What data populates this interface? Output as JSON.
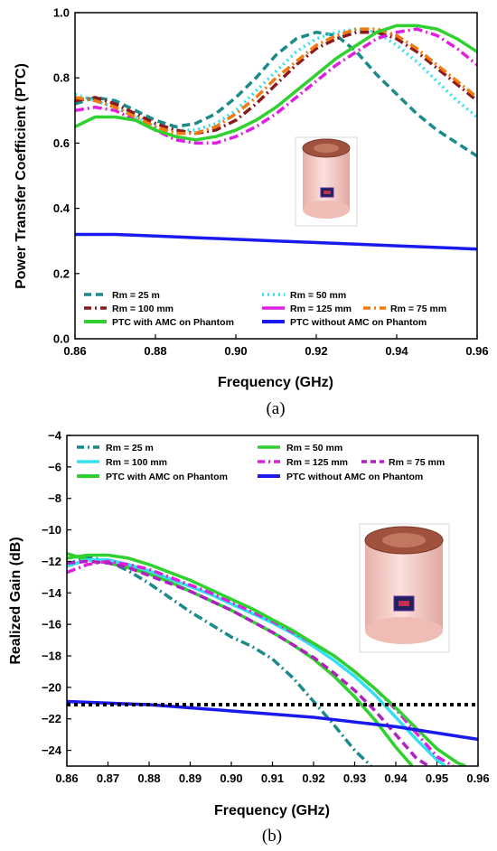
{
  "colors": {
    "teal": "#1a8a8a",
    "cyan": "#33e0f0",
    "darkred": "#8b1a1a",
    "magenta": "#e020e0",
    "orange": "#f07a10",
    "green": "#2ed12e",
    "blue": "#1a1aef",
    "purple": "#b020c0",
    "black": "#000000",
    "cylinder": "#f6c8c4",
    "cylinder_top": "#8b4a3a"
  },
  "chart_data": [
    {
      "type": "line",
      "panel_label": "(a)",
      "xlabel": "Frequency (GHz)",
      "ylabel": "Power Transfer Coefficient (PTC)",
      "xlim": [
        0.86,
        0.96
      ],
      "ylim": [
        0.0,
        1.0
      ],
      "xticks": [
        "0.86",
        "0.88",
        "0.90",
        "0.92",
        "0.94",
        "0.96"
      ],
      "yticks": [
        "0.0",
        "0.2",
        "0.4",
        "0.6",
        "0.8",
        "1.0"
      ],
      "grid": false,
      "legend_position": "bottom",
      "legend_columns": 2,
      "legend_rows": [
        [
          "Rm = 25 m",
          "Rm = 50 mm"
        ],
        [
          "Rm = 100 mm",
          "Rm = 125 mm"
        ],
        [
          "PTC with AMC on Phantom",
          "PTC without AMC on Phantom"
        ]
      ],
      "legend_extra": "Rm = 75 mm",
      "series": [
        {
          "name": "Rm = 25 m",
          "color": "teal",
          "dash": "dash",
          "x": [
            0.86,
            0.865,
            0.87,
            0.875,
            0.88,
            0.885,
            0.89,
            0.895,
            0.9,
            0.905,
            0.91,
            0.915,
            0.92,
            0.925,
            0.93,
            0.935,
            0.94,
            0.945,
            0.95,
            0.955,
            0.96
          ],
          "y": [
            0.72,
            0.74,
            0.73,
            0.7,
            0.67,
            0.65,
            0.66,
            0.69,
            0.74,
            0.8,
            0.87,
            0.92,
            0.94,
            0.93,
            0.88,
            0.81,
            0.75,
            0.69,
            0.64,
            0.6,
            0.56
          ]
        },
        {
          "name": "Rm = 50 mm",
          "color": "cyan",
          "dash": "dot",
          "x": [
            0.86,
            0.865,
            0.87,
            0.875,
            0.88,
            0.885,
            0.89,
            0.895,
            0.9,
            0.905,
            0.91,
            0.915,
            0.92,
            0.925,
            0.93,
            0.935,
            0.94,
            0.945,
            0.95,
            0.955,
            0.96
          ],
          "y": [
            0.75,
            0.73,
            0.71,
            0.68,
            0.65,
            0.64,
            0.64,
            0.66,
            0.7,
            0.76,
            0.82,
            0.88,
            0.92,
            0.94,
            0.95,
            0.94,
            0.9,
            0.85,
            0.79,
            0.73,
            0.68
          ]
        },
        {
          "name": "Rm = 100 mm",
          "color": "darkred",
          "dash": "dashdot",
          "x": [
            0.86,
            0.865,
            0.87,
            0.875,
            0.88,
            0.885,
            0.89,
            0.895,
            0.9,
            0.905,
            0.91,
            0.915,
            0.92,
            0.925,
            0.93,
            0.935,
            0.94,
            0.945,
            0.95,
            0.955,
            0.96
          ],
          "y": [
            0.73,
            0.74,
            0.72,
            0.69,
            0.66,
            0.64,
            0.63,
            0.64,
            0.67,
            0.72,
            0.78,
            0.84,
            0.89,
            0.92,
            0.94,
            0.94,
            0.92,
            0.88,
            0.83,
            0.78,
            0.73
          ]
        },
        {
          "name": "Rm = 125 mm",
          "color": "magenta",
          "dash": "dashdot",
          "x": [
            0.86,
            0.865,
            0.87,
            0.875,
            0.88,
            0.885,
            0.89,
            0.895,
            0.9,
            0.905,
            0.91,
            0.915,
            0.92,
            0.925,
            0.93,
            0.935,
            0.94,
            0.945,
            0.95,
            0.955,
            0.96
          ],
          "y": [
            0.7,
            0.71,
            0.7,
            0.67,
            0.64,
            0.61,
            0.6,
            0.6,
            0.62,
            0.65,
            0.69,
            0.74,
            0.79,
            0.84,
            0.88,
            0.92,
            0.94,
            0.95,
            0.93,
            0.89,
            0.84
          ]
        },
        {
          "name": "Rm = 75 mm",
          "color": "orange",
          "dash": "dashdot",
          "x": [
            0.86,
            0.865,
            0.87,
            0.875,
            0.88,
            0.885,
            0.89,
            0.895,
            0.9,
            0.905,
            0.91,
            0.915,
            0.92,
            0.925,
            0.93,
            0.935,
            0.94,
            0.945,
            0.95,
            0.955,
            0.96
          ],
          "y": [
            0.74,
            0.73,
            0.71,
            0.68,
            0.65,
            0.63,
            0.63,
            0.65,
            0.69,
            0.74,
            0.8,
            0.85,
            0.9,
            0.93,
            0.95,
            0.95,
            0.93,
            0.89,
            0.84,
            0.79,
            0.74
          ]
        },
        {
          "name": "PTC with AMC on Phantom",
          "color": "green",
          "dash": "solid",
          "x": [
            0.86,
            0.865,
            0.87,
            0.875,
            0.88,
            0.885,
            0.89,
            0.895,
            0.9,
            0.905,
            0.91,
            0.915,
            0.92,
            0.925,
            0.93,
            0.935,
            0.94,
            0.945,
            0.95,
            0.955,
            0.96
          ],
          "y": [
            0.65,
            0.68,
            0.68,
            0.67,
            0.64,
            0.62,
            0.61,
            0.62,
            0.64,
            0.67,
            0.71,
            0.76,
            0.81,
            0.86,
            0.9,
            0.94,
            0.96,
            0.96,
            0.95,
            0.92,
            0.88
          ]
        },
        {
          "name": "PTC without AMC on Phantom",
          "color": "blue",
          "dash": "solid",
          "x": [
            0.86,
            0.87,
            0.88,
            0.89,
            0.9,
            0.91,
            0.92,
            0.93,
            0.94,
            0.95,
            0.96
          ],
          "y": [
            0.32,
            0.32,
            0.315,
            0.31,
            0.305,
            0.3,
            0.295,
            0.29,
            0.285,
            0.28,
            0.275
          ]
        }
      ]
    },
    {
      "type": "line",
      "panel_label": "(b)",
      "xlabel": "Frequency (GHz)",
      "ylabel": "Realized Gain (dB)",
      "xlim": [
        0.86,
        0.96
      ],
      "ylim": [
        -25,
        -4
      ],
      "xticks": [
        "0.86",
        "0.87",
        "0.88",
        "0.89",
        "0.90",
        "0.91",
        "0.92",
        "0.93",
        "0.94",
        "0.95",
        "0.96"
      ],
      "yticks": [
        "-4",
        "-6",
        "-8",
        "-10",
        "-12",
        "-14",
        "-16",
        "-18",
        "-20",
        "-22",
        "-24"
      ],
      "grid": false,
      "legend_position": "top",
      "legend_columns": 2,
      "legend_rows": [
        [
          "Rm = 25 m",
          "Rm = 50 mm"
        ],
        [
          "Rm = 100 mm",
          "Rm = 125 mm"
        ],
        [
          "PTC with AMC on Phantom",
          "PTC without AMC on Phantom"
        ]
      ],
      "legend_extra": "Rm = 75 mm",
      "series": [
        {
          "name": "Rm = 25 m",
          "color": "teal",
          "dash": "dashdot",
          "x": [
            0.86,
            0.865,
            0.87,
            0.875,
            0.88,
            0.885,
            0.89,
            0.895,
            0.9,
            0.905,
            0.91,
            0.915,
            0.92,
            0.925,
            0.93,
            0.934
          ],
          "y": [
            -12.2,
            -11.7,
            -12.0,
            -12.6,
            -13.4,
            -14.3,
            -15.2,
            -16.0,
            -16.8,
            -17.4,
            -18.2,
            -19.4,
            -20.9,
            -22.4,
            -24.0,
            -25.0
          ]
        },
        {
          "name": "Rm = 50 mm",
          "color": "green",
          "dash": "solid",
          "x": [
            0.86,
            0.865,
            0.87,
            0.875,
            0.88,
            0.885,
            0.89,
            0.895,
            0.9,
            0.905,
            0.91,
            0.915,
            0.92,
            0.925,
            0.93,
            0.935,
            0.94,
            0.944
          ],
          "y": [
            -11.5,
            -11.9,
            -12.1,
            -12.4,
            -12.8,
            -13.3,
            -13.9,
            -14.5,
            -15.1,
            -15.8,
            -16.5,
            -17.3,
            -18.2,
            -19.3,
            -20.6,
            -22.1,
            -23.8,
            -25.0
          ]
        },
        {
          "name": "Rm = 100 mm",
          "color": "cyan",
          "dash": "solid",
          "x": [
            0.86,
            0.865,
            0.87,
            0.875,
            0.88,
            0.885,
            0.89,
            0.895,
            0.9,
            0.905,
            0.91,
            0.915,
            0.92,
            0.925,
            0.93,
            0.935,
            0.94,
            0.945,
            0.95,
            0.952
          ],
          "y": [
            -12.3,
            -11.9,
            -11.9,
            -12.2,
            -12.6,
            -13.1,
            -13.6,
            -14.1,
            -14.7,
            -15.3,
            -15.9,
            -16.6,
            -17.4,
            -18.3,
            -19.3,
            -20.5,
            -21.9,
            -23.3,
            -24.6,
            -25.0
          ]
        },
        {
          "name": "Rm = 125 mm",
          "color": "magenta",
          "dash": "dashdot",
          "x": [
            0.86,
            0.865,
            0.87,
            0.875,
            0.88,
            0.885,
            0.89,
            0.895,
            0.9,
            0.905,
            0.91,
            0.915,
            0.92,
            0.925,
            0.93,
            0.935,
            0.94,
            0.945,
            0.95,
            0.954
          ],
          "y": [
            -12.7,
            -12.2,
            -12.0,
            -12.2,
            -12.5,
            -13.0,
            -13.5,
            -14.0,
            -14.6,
            -15.2,
            -15.8,
            -16.5,
            -17.2,
            -18.0,
            -19.0,
            -20.1,
            -21.4,
            -22.9,
            -24.4,
            -25.0
          ]
        },
        {
          "name": "Rm = 75 mm",
          "color": "purple",
          "dash": "dash",
          "x": [
            0.86,
            0.865,
            0.87,
            0.875,
            0.88,
            0.885,
            0.89,
            0.895,
            0.9,
            0.905,
            0.91,
            0.915,
            0.92,
            0.925,
            0.93,
            0.935,
            0.94,
            0.945,
            0.948
          ],
          "y": [
            -12.1,
            -12.0,
            -12.1,
            -12.4,
            -12.9,
            -13.4,
            -13.9,
            -14.5,
            -15.1,
            -15.8,
            -16.5,
            -17.3,
            -18.1,
            -19.1,
            -20.2,
            -21.5,
            -23.0,
            -24.5,
            -25.0
          ]
        },
        {
          "name": "PTC with AMC on Phantom",
          "color": "green",
          "dash": "solid",
          "x": [
            0.86,
            0.865,
            0.87,
            0.875,
            0.88,
            0.885,
            0.89,
            0.895,
            0.9,
            0.905,
            0.91,
            0.915,
            0.92,
            0.925,
            0.93,
            0.935,
            0.94,
            0.945,
            0.95,
            0.955,
            0.957
          ],
          "y": [
            -11.8,
            -11.6,
            -11.6,
            -11.8,
            -12.2,
            -12.7,
            -13.2,
            -13.8,
            -14.4,
            -15.0,
            -15.7,
            -16.4,
            -17.2,
            -18.0,
            -19.0,
            -20.1,
            -21.3,
            -22.6,
            -23.9,
            -24.8,
            -25.0
          ]
        },
        {
          "name": "PTC without AMC on Phantom",
          "color": "blue",
          "dash": "solid",
          "x": [
            0.86,
            0.87,
            0.88,
            0.89,
            0.9,
            0.91,
            0.92,
            0.93,
            0.94,
            0.95,
            0.96
          ],
          "y": [
            -20.9,
            -21.0,
            -21.1,
            -21.3,
            -21.5,
            -21.7,
            -21.9,
            -22.2,
            -22.5,
            -22.9,
            -23.3
          ]
        },
        {
          "name": "",
          "color": "black",
          "dash": "dotted",
          "x": [
            0.86,
            0.96
          ],
          "y": [
            -21.1,
            -21.1
          ]
        }
      ]
    }
  ]
}
